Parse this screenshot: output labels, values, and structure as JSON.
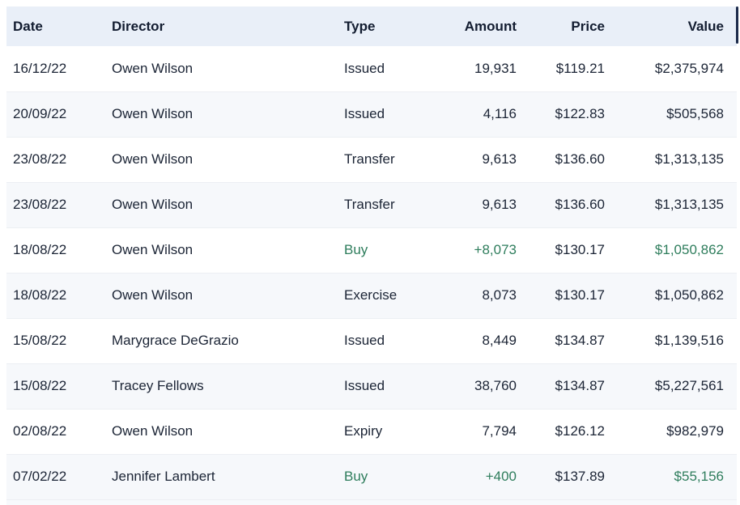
{
  "colors": {
    "header_bg": "#E9EFF8",
    "row_alt_bg": "#F6F8FB",
    "separator": "#ECEFF3",
    "text": "#1B2435",
    "header_text": "#121C30",
    "accent_green": "#2E7D5C",
    "scrollbar_thumb": "#1C2B4B"
  },
  "table": {
    "columns": [
      {
        "key": "date",
        "label": "Date",
        "align": "left"
      },
      {
        "key": "director",
        "label": "Director",
        "align": "left"
      },
      {
        "key": "type",
        "label": "Type",
        "align": "left"
      },
      {
        "key": "amount",
        "label": "Amount",
        "align": "right"
      },
      {
        "key": "price",
        "label": "Price",
        "align": "right"
      },
      {
        "key": "value",
        "label": "Value",
        "align": "right"
      }
    ],
    "green_columns": [
      "type",
      "amount",
      "value"
    ],
    "rows": [
      {
        "date": "16/12/22",
        "director": "Owen Wilson",
        "type": "Issued",
        "amount": "19,931",
        "price": "$119.21",
        "value": "$2,375,974",
        "green": false
      },
      {
        "date": "20/09/22",
        "director": "Owen Wilson",
        "type": "Issued",
        "amount": "4,116",
        "price": "$122.83",
        "value": "$505,568",
        "green": false
      },
      {
        "date": "23/08/22",
        "director": "Owen Wilson",
        "type": "Transfer",
        "amount": "9,613",
        "price": "$136.60",
        "value": "$1,313,135",
        "green": false
      },
      {
        "date": "23/08/22",
        "director": "Owen Wilson",
        "type": "Transfer",
        "amount": "9,613",
        "price": "$136.60",
        "value": "$1,313,135",
        "green": false
      },
      {
        "date": "18/08/22",
        "director": "Owen Wilson",
        "type": "Buy",
        "amount": "+8,073",
        "price": "$130.17",
        "value": "$1,050,862",
        "green": true
      },
      {
        "date": "18/08/22",
        "director": "Owen Wilson",
        "type": "Exercise",
        "amount": "8,073",
        "price": "$130.17",
        "value": "$1,050,862",
        "green": false
      },
      {
        "date": "15/08/22",
        "director": "Marygrace DeGrazio",
        "type": "Issued",
        "amount": "8,449",
        "price": "$134.87",
        "value": "$1,139,516",
        "green": false
      },
      {
        "date": "15/08/22",
        "director": "Tracey Fellows",
        "type": "Issued",
        "amount": "38,760",
        "price": "$134.87",
        "value": "$5,227,561",
        "green": false
      },
      {
        "date": "02/08/22",
        "director": "Owen Wilson",
        "type": "Expiry",
        "amount": "7,794",
        "price": "$126.12",
        "value": "$982,979",
        "green": false
      },
      {
        "date": "07/02/22",
        "director": "Jennifer Lambert",
        "type": "Buy",
        "amount": "+400",
        "price": "$137.89",
        "value": "$55,156",
        "green": true
      }
    ]
  }
}
